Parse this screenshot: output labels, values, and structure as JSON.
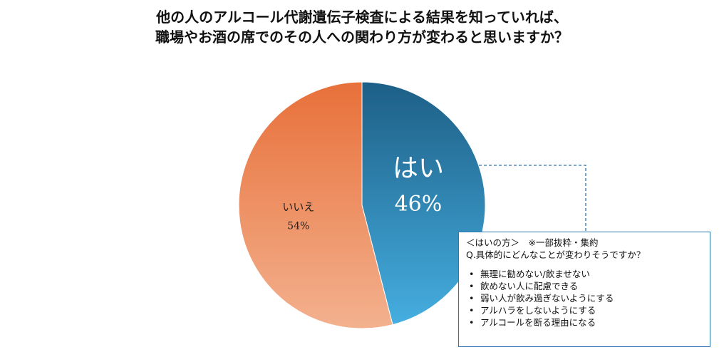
{
  "title_lines": [
    "他の人のアルコール代謝遺伝子検査による結果を知っていれば、",
    "職場やお酒の席でのその人への関わり方が変わると思いますか？"
  ],
  "chart_data": {
    "type": "pie",
    "title": "他の人のアルコール代謝遺伝子検査による結果を知っていれば、職場やお酒の席でのその人への関わり方が変わると思いますか？",
    "slices": [
      {
        "label": "はい",
        "value": 46,
        "value_label": "46%",
        "color_start": "#1d5f86",
        "color_end": "#45aee0"
      },
      {
        "label": "いいえ",
        "value": 54,
        "value_label": "54%",
        "color_start": "#e8703a",
        "color_end": "#f3b18e"
      }
    ],
    "legend": "none"
  },
  "callout": {
    "header": "＜はいの方＞　※一部抜粋・集約",
    "question": "Q.具体的にどんなことが変わりそうですか？",
    "items": [
      "無理に勧めない/飲ませない",
      "飲めない人に配慮できる",
      "弱い人が飲み過ぎないようにする",
      "アルハラをしないようにする",
      "アルコールを断る理由になる"
    ],
    "border_color": "#2e75b6"
  }
}
